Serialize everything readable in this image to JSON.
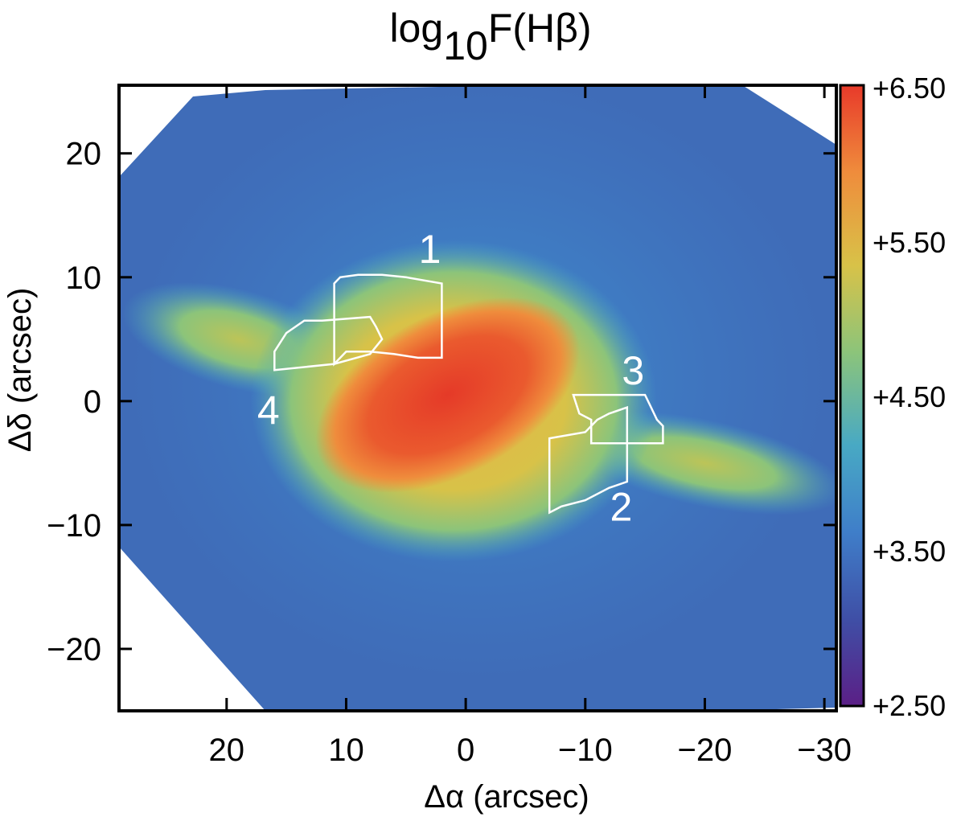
{
  "chart_data": {
    "type": "heatmap",
    "title": {
      "base": "log",
      "subscript": "10",
      "rest": "F(Hβ)"
    },
    "xlabel": "Δα (arcsec)",
    "ylabel": "Δδ (arcsec)",
    "xlim": [
      29,
      -31
    ],
    "ylim": [
      -25,
      25.5
    ],
    "x_ticks": [
      20,
      10,
      0,
      -10,
      -20,
      -30
    ],
    "x_tick_labels": [
      "20",
      "10",
      "0",
      "−10",
      "−20",
      "−30"
    ],
    "y_ticks": [
      20,
      10,
      0,
      -10,
      -20
    ],
    "y_tick_labels": [
      "20",
      "10",
      "0",
      "−10",
      "−20"
    ],
    "colorbar": {
      "min": 2.5,
      "max": 6.5,
      "ticks": [
        6.5,
        5.5,
        4.5,
        3.5,
        2.5
      ],
      "tick_labels": [
        "+6.50",
        "+5.50",
        "+4.50",
        "+3.50",
        "+2.50"
      ],
      "colormap": [
        "#5b1f86",
        "#3f4fa6",
        "#3f7ec9",
        "#48a9c4",
        "#8cc47a",
        "#d8c248",
        "#ef8c3c",
        "#e83a2a"
      ]
    },
    "image_features": [
      {
        "name": "central-lobe",
        "shape": "ellipse",
        "center": [
          1,
          0
        ],
        "radius": [
          17,
          13
        ],
        "peak_value": 5.1
      },
      {
        "name": "inner-bar",
        "shape": "ellipse",
        "center": [
          1.5,
          0.5
        ],
        "radius": [
          12,
          6.5
        ],
        "angle_deg": -28,
        "peak_value": 6.2
      },
      {
        "name": "east-jet",
        "shape": "ellipse",
        "center": [
          19,
          5
        ],
        "radius": [
          10,
          4
        ],
        "angle_deg": 15,
        "peak_value": 4.6
      },
      {
        "name": "west-jet",
        "shape": "ellipse",
        "center": [
          -20,
          -5
        ],
        "radius": [
          12,
          3.5
        ],
        "angle_deg": 12,
        "peak_value": 4.4
      }
    ],
    "regions": [
      {
        "id": "1",
        "label": "1",
        "label_pos": [
          3,
          12
        ],
        "outline": [
          [
            11,
            9.5
          ],
          [
            10.5,
            10
          ],
          [
            9,
            10.2
          ],
          [
            7,
            10.2
          ],
          [
            5,
            10
          ],
          [
            2,
            9.5
          ],
          [
            2,
            3.5
          ],
          [
            4,
            3.5
          ],
          [
            6,
            3.8
          ],
          [
            8,
            4
          ],
          [
            10,
            4
          ],
          [
            11,
            3
          ],
          [
            11,
            9.5
          ]
        ]
      },
      {
        "id": "2",
        "label": "2",
        "label_pos": [
          -13,
          -8.8
        ],
        "outline": [
          [
            -7,
            -3
          ],
          [
            -10,
            -2.5
          ],
          [
            -11,
            -1.5
          ],
          [
            -12,
            -1
          ],
          [
            -13.5,
            -0.5
          ],
          [
            -13.5,
            -6.5
          ],
          [
            -12,
            -7
          ],
          [
            -10,
            -8
          ],
          [
            -8,
            -8.5
          ],
          [
            -7,
            -9
          ],
          [
            -7,
            -3
          ]
        ]
      },
      {
        "id": "3",
        "label": "3",
        "label_pos": [
          -14,
          2.2
        ],
        "outline": [
          [
            -9,
            0.5
          ],
          [
            -15,
            0.5
          ],
          [
            -15.5,
            -0.5
          ],
          [
            -16,
            -1.5
          ],
          [
            -16.5,
            -2
          ],
          [
            -16.5,
            -3.4
          ],
          [
            -10.5,
            -3.4
          ],
          [
            -10.5,
            -1.5
          ],
          [
            -9.5,
            -1
          ],
          [
            -9,
            0.5
          ]
        ]
      },
      {
        "id": "4",
        "label": "4",
        "label_pos": [
          16.5,
          -1
        ],
        "outline": [
          [
            16,
            4
          ],
          [
            15,
            5.5
          ],
          [
            13.5,
            6.5
          ],
          [
            12,
            6.5
          ],
          [
            8,
            6.8
          ],
          [
            7.5,
            6
          ],
          [
            7,
            5
          ],
          [
            8,
            3.8
          ],
          [
            11,
            3
          ],
          [
            16,
            2.5
          ],
          [
            16,
            4
          ]
        ]
      }
    ]
  }
}
